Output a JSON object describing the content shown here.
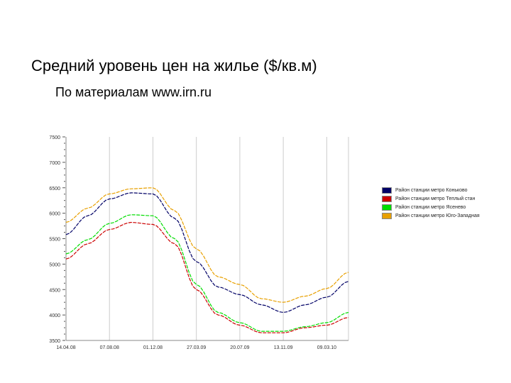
{
  "header": {
    "title": "Средний уровень цен на жилье ($/кв.м)",
    "subtitle": "По материалам www.irn.ru"
  },
  "chart_data": {
    "type": "line",
    "title": "Средний уровень цен на жилье ($/кв.м)",
    "subtitle": "По материалам www.irn.ru",
    "xlabel": "",
    "ylabel": "",
    "x_tick_labels": [
      "14.04.08",
      "07.08.08",
      "01.12.08",
      "27.03.09",
      "20.07.09",
      "13.11.09",
      "09.03.10"
    ],
    "y_ticks": [
      3500,
      4000,
      4500,
      5000,
      5500,
      6000,
      6500,
      7000,
      7500
    ],
    "y_tick_labels": [
      "3500",
      "4000",
      "4500",
      "5000",
      "5500",
      "6000",
      "6500",
      "7000",
      "7500"
    ],
    "xlim": [
      0,
      6.5
    ],
    "ylim": [
      3500,
      7500
    ],
    "grid": "vertical",
    "legend_position": "right",
    "x": [
      0,
      0.5,
      1,
      1.5,
      2,
      2.5,
      3,
      3.5,
      4,
      4.5,
      5,
      5.5,
      6,
      6.5
    ],
    "series": [
      {
        "name": "Район станции метро Коньково",
        "color": "#000066",
        "values": [
          5580,
          5950,
          6280,
          6400,
          6380,
          5900,
          5050,
          4550,
          4400,
          4200,
          4050,
          4200,
          4350,
          4660
        ]
      },
      {
        "name": "Район станции метро Теплый стан",
        "color": "#cc0000",
        "values": [
          5100,
          5400,
          5680,
          5820,
          5780,
          5400,
          4500,
          4000,
          3800,
          3650,
          3650,
          3750,
          3800,
          3950
        ]
      },
      {
        "name": "Район станции метро Ясенево",
        "color": "#00dd00",
        "values": [
          5200,
          5480,
          5800,
          5970,
          5950,
          5500,
          4600,
          4050,
          3850,
          3680,
          3680,
          3770,
          3850,
          4050
        ]
      },
      {
        "name": "Район станции метро Юго-Западная",
        "color": "#e8a000",
        "values": [
          5820,
          6100,
          6380,
          6480,
          6500,
          6050,
          5300,
          4750,
          4600,
          4320,
          4250,
          4370,
          4520,
          4840
        ]
      }
    ]
  }
}
